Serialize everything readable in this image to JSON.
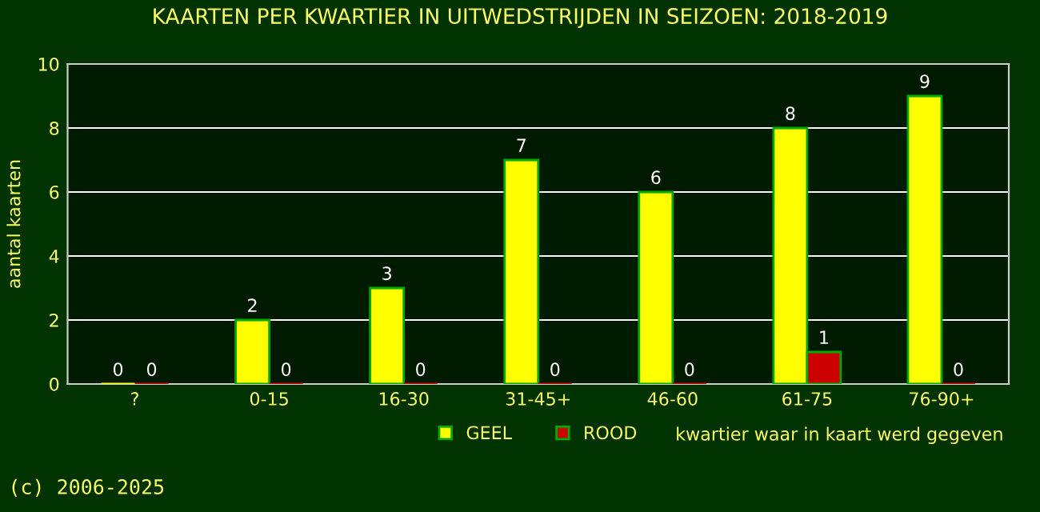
{
  "chart_data": {
    "type": "bar",
    "title": "KAARTEN PER KWARTIER IN UITWEDSTRIJDEN IN SEIZOEN: 2018-2019",
    "xlabel": "kwartier waar in kaart werd gegeven",
    "ylabel": "aantal kaarten",
    "categories": [
      "?",
      "0-15",
      "16-30",
      "31-45+",
      "46-60",
      "61-75",
      "76-90+"
    ],
    "series": [
      {
        "name": "GEEL",
        "color": "#ffff00",
        "values": [
          0,
          2,
          3,
          7,
          6,
          8,
          9
        ]
      },
      {
        "name": "ROOD",
        "color": "#cc0000",
        "values": [
          0,
          0,
          0,
          0,
          0,
          1,
          0
        ]
      }
    ],
    "ylim": [
      0,
      10
    ],
    "yticks": [
      0,
      2,
      4,
      6,
      8,
      10
    ],
    "grid": "y",
    "legend": "bottom",
    "data_labels": true,
    "annotations": [
      "(c) 2006-2025"
    ]
  }
}
